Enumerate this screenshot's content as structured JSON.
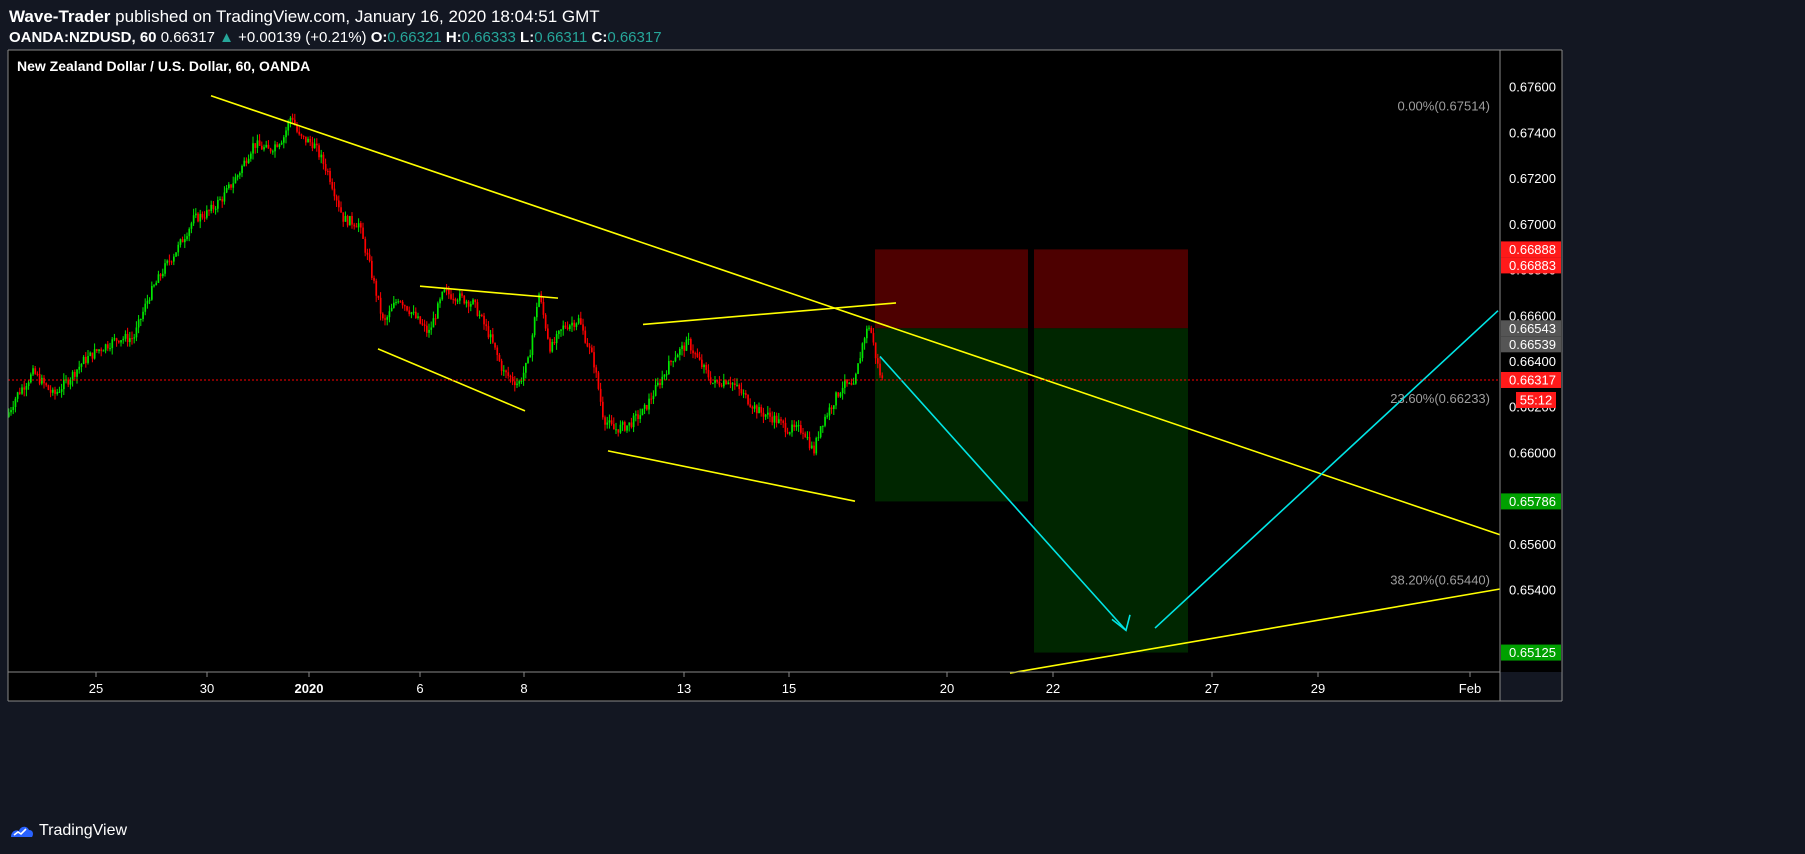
{
  "header": {
    "author": "Wave-Trader",
    "published_text": "published on TradingView.com, January 16, 2020 18:04:51 GMT",
    "symbol": "OANDA:NZDUSD, 60",
    "last": "0.66317",
    "change_arrow": "▲",
    "change": "+0.00139 (+0.21%)",
    "o_label": "O:",
    "o_value": "0.66321",
    "h_label": "H:",
    "h_value": "0.66333",
    "l_label": "L:",
    "l_value": "0.66311",
    "c_label": "C:",
    "c_value": "0.66317"
  },
  "footer": {
    "brand": "TradingView",
    "logo_icon": "tradingview-logo-icon"
  },
  "colors": {
    "background": "#000000",
    "page": "#131722",
    "up": "#00e600",
    "down": "#ff0000",
    "trendline": "#ffff00",
    "projection": "#00e5e5",
    "stop_zone": "#4d0000",
    "target_zone": "#002600",
    "axis_text": "#ffffff"
  },
  "chart_data": {
    "type": "candlestick",
    "title": "New Zealand Dollar / U.S. Dollar, 60, OANDA",
    "price_label": "0.66317",
    "countdown": "55:12",
    "ylim": [
      0.6504,
      0.6776
    ],
    "y_ticks": [
      "0.67600",
      "0.67400",
      "0.67200",
      "0.67000",
      "0.66800",
      "0.66600",
      "0.66400",
      "0.66200",
      "0.66000",
      "0.65800",
      "0.65600",
      "0.65400"
    ],
    "x_ticks": [
      {
        "label": "25",
        "bold": false
      },
      {
        "label": "30",
        "bold": false
      },
      {
        "label": "2020",
        "bold": true
      },
      {
        "label": "6",
        "bold": false
      },
      {
        "label": "8",
        "bold": false
      },
      {
        "label": "13",
        "bold": false
      },
      {
        "label": "15",
        "bold": false
      },
      {
        "label": "20",
        "bold": false
      },
      {
        "label": "22",
        "bold": false
      },
      {
        "label": "27",
        "bold": false
      },
      {
        "label": "29",
        "bold": false
      },
      {
        "label": "Feb",
        "bold": false
      }
    ],
    "price_path": [
      [
        0,
        0.6608
      ],
      [
        18,
        0.6625
      ],
      [
        35,
        0.6635
      ],
      [
        55,
        0.6625
      ],
      [
        70,
        0.6632
      ],
      [
        85,
        0.664
      ],
      [
        100,
        0.6645
      ],
      [
        120,
        0.665
      ],
      [
        135,
        0.665
      ],
      [
        150,
        0.6668
      ],
      [
        165,
        0.668
      ],
      [
        180,
        0.669
      ],
      [
        195,
        0.6702
      ],
      [
        210,
        0.6705
      ],
      [
        225,
        0.6712
      ],
      [
        240,
        0.6722
      ],
      [
        255,
        0.6735
      ],
      [
        270,
        0.6732
      ],
      [
        285,
        0.6738
      ],
      [
        293,
        0.6748
      ],
      [
        300,
        0.6738
      ],
      [
        315,
        0.6735
      ],
      [
        330,
        0.6722
      ],
      [
        345,
        0.6702
      ],
      [
        360,
        0.67
      ],
      [
        372,
        0.668
      ],
      [
        385,
        0.6656
      ],
      [
        400,
        0.6668
      ],
      [
        415,
        0.666
      ],
      [
        430,
        0.6652
      ],
      [
        445,
        0.667
      ],
      [
        460,
        0.6668
      ],
      [
        475,
        0.6665
      ],
      [
        490,
        0.6652
      ],
      [
        505,
        0.6635
      ],
      [
        520,
        0.663
      ],
      [
        530,
        0.664
      ],
      [
        540,
        0.667
      ],
      [
        552,
        0.6645
      ],
      [
        565,
        0.6655
      ],
      [
        580,
        0.6658
      ],
      [
        595,
        0.664
      ],
      [
        605,
        0.6615
      ],
      [
        615,
        0.661
      ],
      [
        630,
        0.6612
      ],
      [
        645,
        0.6618
      ],
      [
        660,
        0.663
      ],
      [
        675,
        0.6642
      ],
      [
        690,
        0.6648
      ],
      [
        700,
        0.664
      ],
      [
        715,
        0.663
      ],
      [
        730,
        0.6632
      ],
      [
        745,
        0.6625
      ],
      [
        760,
        0.6618
      ],
      [
        775,
        0.6615
      ],
      [
        790,
        0.661
      ],
      [
        805,
        0.661
      ],
      [
        815,
        0.66
      ],
      [
        822,
        0.6612
      ],
      [
        832,
        0.662
      ],
      [
        845,
        0.663
      ],
      [
        855,
        0.6628
      ],
      [
        865,
        0.665
      ],
      [
        871,
        0.6656
      ],
      [
        878,
        0.664
      ],
      [
        883,
        0.66317
      ]
    ],
    "trendlines": [
      {
        "color": "trendline",
        "points": [
          [
            211,
            0.6756
          ],
          [
            1500,
            0.6564
          ]
        ]
      },
      {
        "color": "trendline",
        "points": [
          [
            420,
            0.66727
          ],
          [
            558,
            0.66675
          ]
        ]
      },
      {
        "color": "trendline",
        "points": [
          [
            378,
            0.66453
          ],
          [
            525,
            0.66182
          ]
        ]
      },
      {
        "color": "trendline",
        "points": [
          [
            643,
            0.6656
          ],
          [
            896,
            0.66654
          ]
        ]
      },
      {
        "color": "trendline",
        "points": [
          [
            608,
            0.66007
          ],
          [
            855,
            0.65787
          ]
        ]
      },
      {
        "color": "trendline",
        "points": [
          [
            1010,
            0.65035
          ],
          [
            1500,
            0.65403
          ]
        ]
      }
    ],
    "projection": {
      "down": [
        [
          880,
          0.6642
        ],
        [
          1126,
          0.65222
        ]
      ],
      "up": [
        [
          1155,
          0.65232
        ],
        [
          1498,
          0.6662
        ]
      ],
      "arrowhead": [
        [
          1112,
          0.6527
        ],
        [
          1126,
          0.65222
        ],
        [
          1130,
          0.6529
        ]
      ]
    },
    "positions": [
      {
        "x1": 875,
        "x2": 1028,
        "stop": 0.66888,
        "entry": 0.66543,
        "target": 0.65786
      },
      {
        "x1": 1034,
        "x2": 1188,
        "stop": 0.66888,
        "entry": 0.66543,
        "target": 0.65125
      }
    ],
    "fib_levels": [
      {
        "label": "0.00%(0.67514)",
        "value": 0.67514
      },
      {
        "label": "23.60%(0.66233)",
        "value": 0.66233
      },
      {
        "label": "38.20%(0.65440)",
        "value": 0.6544
      }
    ],
    "price_markers": [
      {
        "label": "0.66888",
        "value": 0.66888,
        "bg": "#ff1a1a"
      },
      {
        "label": "0.66883",
        "value": 0.66883,
        "bg": "#ff1a1a"
      },
      {
        "label": "0.66543",
        "value": 0.66543,
        "bg": "#555555"
      },
      {
        "label": "0.66539",
        "value": 0.66539,
        "bg": "#555555"
      },
      {
        "label": "0.66317",
        "value": 0.66317,
        "bg": "#ff1a1a"
      },
      {
        "label": "0.65786",
        "value": 0.65786,
        "bg": "#00a000"
      },
      {
        "label": "0.65125",
        "value": 0.65125,
        "bg": "#00a000"
      }
    ]
  }
}
